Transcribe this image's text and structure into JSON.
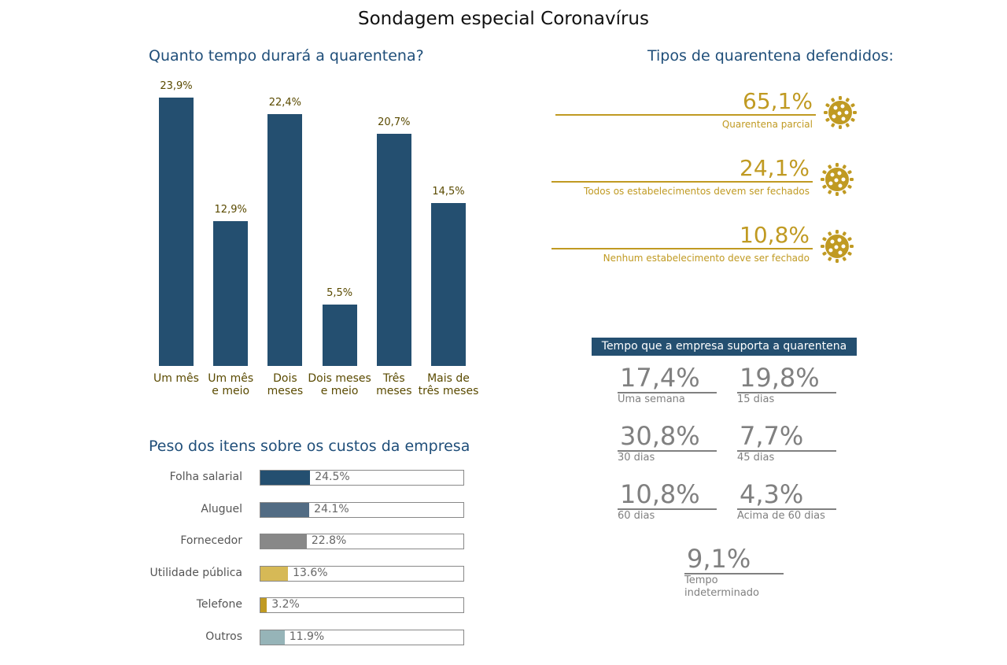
{
  "title": "Sondagem especial Coronavírus",
  "chart_data": [
    {
      "type": "bar",
      "title": "Quanto tempo durará a quarentena?",
      "categories": [
        "Um mês",
        "Um mês\ne meio",
        "Dois\nmeses",
        "Dois meses\ne meio",
        "Três\nmeses",
        "Mais de\ntrês meses"
      ],
      "values": [
        23.9,
        12.9,
        22.4,
        5.5,
        20.7,
        14.5
      ],
      "labels": [
        "23,9%",
        "12,9%",
        "22,4%",
        "5,5%",
        "20,7%",
        "14,5%"
      ],
      "color": "#244f70",
      "grid": false
    },
    {
      "type": "bar",
      "orientation": "horizontal",
      "title": "Peso dos itens sobre os custos da empresa",
      "categories": [
        "Folha salarial",
        "Aluguel",
        "Fornecedor",
        "Utilidade pública",
        "Telefone",
        "Outros"
      ],
      "values": [
        24.5,
        24.1,
        22.8,
        13.6,
        3.2,
        11.9
      ],
      "labels": [
        "24.5%",
        "24.1%",
        "22.8%",
        "13.6%",
        "3.2%",
        "11.9%"
      ],
      "colors": [
        "#244f70",
        "#526c84",
        "#888888",
        "#d6b956",
        "#c09a22",
        "#96b4b8"
      ],
      "xlim": [
        0,
        100
      ]
    },
    {
      "type": "table",
      "title": "Tipos de quarentena defendidos:",
      "rows": [
        {
          "value": "65,1%",
          "label": "Quarentena parcial"
        },
        {
          "value": "24,1%",
          "label": "Todos os estabelecimentos devem ser fechados"
        },
        {
          "value": "10,8%",
          "label": "Nenhum estabelecimento deve ser fechado"
        }
      ],
      "icon": "virus-icon",
      "color": "#c09a22"
    },
    {
      "type": "table",
      "title": "Tempo que a empresa suporta a quarentena",
      "rows": [
        {
          "value": "17,4%",
          "label": "Uma semana"
        },
        {
          "value": "19,8%",
          "label": "15 dias"
        },
        {
          "value": "30,8%",
          "label": "30 dias"
        },
        {
          "value": "7,7%",
          "label": "45 dias"
        },
        {
          "value": "10,8%",
          "label": "60 dias"
        },
        {
          "value": "4,3%",
          "label": "Acima de 60 dias"
        },
        {
          "value": "9,1%",
          "label": "Tempo indeterminado"
        }
      ]
    }
  ]
}
